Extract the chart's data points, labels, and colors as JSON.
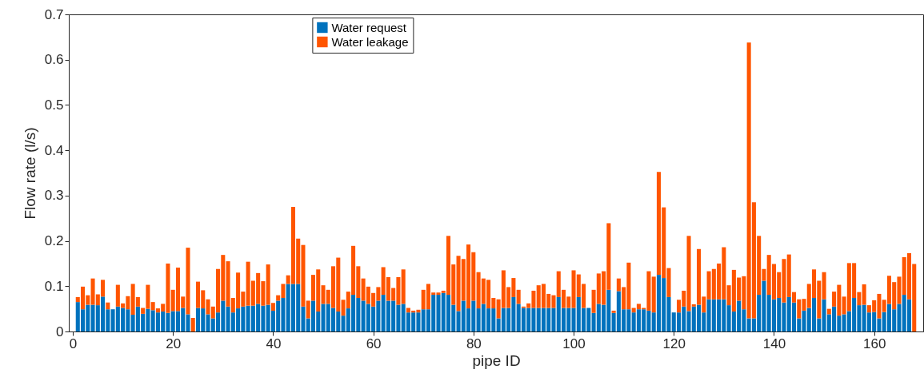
{
  "chart_data": {
    "type": "bar",
    "stacked": true,
    "xlabel": "pipe ID",
    "ylabel": "Flow rate (l/s)",
    "legend": "top",
    "x": [
      1,
      2,
      3,
      4,
      5,
      6,
      7,
      8,
      9,
      10,
      11,
      12,
      13,
      14,
      15,
      16,
      17,
      18,
      19,
      20,
      21,
      22,
      23,
      24,
      25,
      26,
      27,
      28,
      29,
      30,
      31,
      32,
      33,
      34,
      35,
      36,
      37,
      38,
      39,
      40,
      41,
      42,
      43,
      44,
      45,
      46,
      47,
      48,
      49,
      50,
      51,
      52,
      53,
      54,
      55,
      56,
      57,
      58,
      59,
      60,
      61,
      62,
      63,
      64,
      65,
      66,
      67,
      68,
      69,
      70,
      71,
      72,
      73,
      74,
      75,
      76,
      77,
      78,
      79,
      80,
      81,
      82,
      83,
      84,
      85,
      86,
      87,
      88,
      89,
      90,
      91,
      92,
      93,
      94,
      95,
      96,
      97,
      98,
      99,
      100,
      101,
      102,
      103,
      104,
      105,
      106,
      107,
      108,
      109,
      110,
      111,
      112,
      113,
      114,
      115,
      116,
      117,
      118,
      119,
      120,
      121,
      122,
      123,
      124,
      125,
      126,
      127,
      128,
      129,
      130,
      131,
      132,
      133,
      134,
      135,
      136,
      137,
      138,
      139,
      140,
      141,
      142,
      143,
      144,
      145,
      146,
      147,
      148,
      149,
      150,
      151,
      152,
      153,
      154,
      155,
      156,
      157,
      158,
      159,
      160,
      161,
      162,
      163,
      164,
      165,
      166,
      167,
      168
    ],
    "xlim": [
      0,
      169
    ],
    "xticks": [
      0,
      20,
      40,
      60,
      80,
      100,
      120,
      140,
      160
    ],
    "ylim": [
      0,
      0.7
    ],
    "yticks": [
      0,
      0.1,
      0.2,
      0.3,
      0.4,
      0.5,
      0.6,
      0.7
    ],
    "series": [
      {
        "name": "Water request",
        "color": "#0072bd",
        "values": [
          0.065,
          0.049,
          0.059,
          0.059,
          0.058,
          0.077,
          0.049,
          0.049,
          0.055,
          0.052,
          0.049,
          0.037,
          0.055,
          0.039,
          0.05,
          0.047,
          0.042,
          0.044,
          0.041,
          0.045,
          0.045,
          0.052,
          0.038,
          0,
          0.052,
          0.051,
          0.038,
          0.029,
          0.042,
          0.068,
          0.055,
          0.042,
          0.051,
          0.055,
          0.057,
          0.057,
          0.061,
          0.057,
          0.059,
          0.046,
          0.068,
          0.074,
          0.105,
          0.105,
          0.105,
          0.055,
          0.029,
          0.068,
          0.044,
          0.061,
          0.061,
          0.052,
          0.044,
          0.035,
          0.051,
          0.081,
          0.074,
          0.068,
          0.061,
          0.055,
          0.068,
          0.081,
          0.068,
          0.068,
          0.059,
          0.061,
          0.042,
          0.042,
          0.042,
          0.049,
          0.049,
          0.081,
          0.081,
          0.085,
          0.081,
          0.059,
          0.045,
          0.068,
          0.051,
          0.068,
          0.051,
          0.061,
          0.051,
          0.051,
          0.029,
          0.052,
          0.052,
          0.076,
          0.061,
          0.052,
          0.052,
          0.052,
          0.052,
          0.052,
          0.052,
          0.052,
          0.076,
          0.052,
          0.052,
          0.052,
          0.076,
          0.052,
          0.052,
          0.041,
          0.061,
          0.059,
          0.092,
          0.041,
          0.089,
          0.049,
          0.049,
          0.042,
          0.049,
          0.049,
          0.046,
          0.042,
          0.125,
          0.118,
          0.076,
          0.042,
          0.042,
          0.055,
          0.045,
          0.055,
          0.059,
          0.042,
          0.071,
          0.071,
          0.071,
          0.071,
          0.058,
          0.044,
          0.068,
          0.049,
          0.029,
          0.029,
          0.081,
          0.112,
          0.081,
          0.071,
          0.074,
          0.064,
          0.076,
          0.064,
          0.029,
          0.046,
          0.052,
          0.074,
          0.029,
          0.071,
          0.038,
          0.055,
          0.035,
          0.038,
          0.045,
          0.074,
          0.058,
          0.059,
          0.042,
          0.043,
          0.029,
          0.043,
          0.061,
          0.049,
          0.061,
          0.081,
          0.071,
          0
        ]
      },
      {
        "name": "Water leakage",
        "color": "#ff5500",
        "values": [
          0.011,
          0.05,
          0.021,
          0.058,
          0.024,
          0.037,
          0.015,
          null,
          0.048,
          0.01,
          0.029,
          0.068,
          0.021,
          0.013,
          0.053,
          0.018,
          0.009,
          0.017,
          0.109,
          0.047,
          0.096,
          0.025,
          0.147,
          0.03,
          0.058,
          0.04,
          0.033,
          0.026,
          0.096,
          0.101,
          0.1,
          0.032,
          0.079,
          0.033,
          0.097,
          0.055,
          0.068,
          0.054,
          0.089,
          0.017,
          0.012,
          0.031,
          0.019,
          0.17,
          0.1,
          0.136,
          0.039,
          0.057,
          0.093,
          0.041,
          0.031,
          0.092,
          0.119,
          0.035,
          0.037,
          0.108,
          0.07,
          0.049,
          0.038,
          0.03,
          0.03,
          0.061,
          0.052,
          0.028,
          0.061,
          0.076,
          0.01,
          0.004,
          0.006,
          0.043,
          0.056,
          0.005,
          0.005,
          0.005,
          0.13,
          0.089,
          0.122,
          0.092,
          0.141,
          0.107,
          0.08,
          0.056,
          0.063,
          0.023,
          0.042,
          0.083,
          0.046,
          0.042,
          0.031,
          0.003,
          0.01,
          0.038,
          0.05,
          0.053,
          0.031,
          0.028,
          0.057,
          0.04,
          0.025,
          0.083,
          0.05,
          0.053,
          0,
          0.051,
          0.067,
          0.074,
          0.147,
          0.005,
          0.028,
          0.049,
          0.103,
          0.01,
          0.012,
          0.003,
          0.087,
          0.079,
          0.227,
          0.156,
          0.064,
          0,
          0.028,
          0.035,
          0.166,
          0.005,
          0.123,
          0.035,
          0.062,
          0.067,
          0.079,
          0.115,
          0.044,
          0.092,
          0.051,
          0.073,
          0.609,
          0.256,
          0.13,
          0.026,
          0.088,
          0.078,
          0.057,
          0.096,
          0.094,
          0.023,
          0.042,
          0.026,
          0.053,
          0.063,
          0.083,
          0.06,
          0.012,
          0.033,
          0.068,
          0.039,
          0.106,
          0.077,
          0.029,
          0.045,
          0.016,
          0.026,
          0.054,
          0.027,
          0.062,
          0.06,
          0.06,
          0.083,
          0.102,
          0.149
        ]
      }
    ]
  }
}
